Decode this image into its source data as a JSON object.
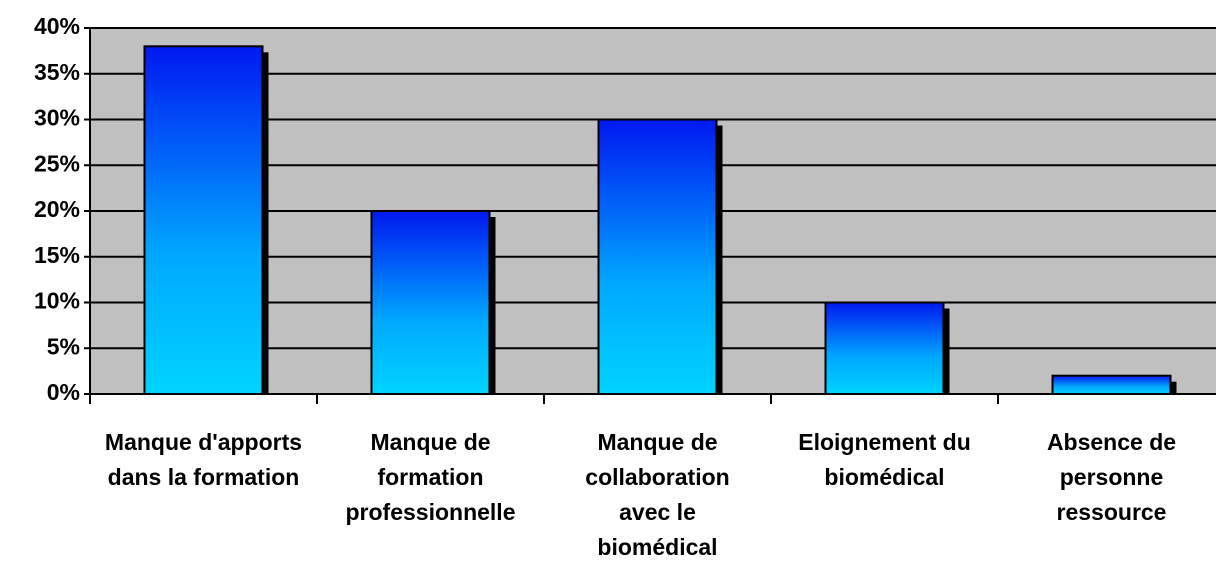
{
  "chart_data": {
    "type": "bar",
    "categories": [
      "Manque d'apports dans la formation",
      "Manque de formation professionnelle",
      "Manque de collaboration avec le biomédical",
      "Eloignement du biomédical",
      "Absence de personne ressource"
    ],
    "values": [
      38,
      20,
      30,
      10,
      2
    ],
    "color": "#0a40f8",
    "ylim": [
      0,
      40
    ],
    "yticks": [
      {
        "value": 0,
        "label": "0%"
      },
      {
        "value": 5,
        "label": "5%"
      },
      {
        "value": 10,
        "label": "10%"
      },
      {
        "value": 15,
        "label": "15%"
      },
      {
        "value": 20,
        "label": "20%"
      },
      {
        "value": 25,
        "label": "25%"
      },
      {
        "value": 30,
        "label": "30%"
      },
      {
        "value": 35,
        "label": "35%"
      },
      {
        "value": 40,
        "label": "40%"
      }
    ],
    "grid": true
  }
}
